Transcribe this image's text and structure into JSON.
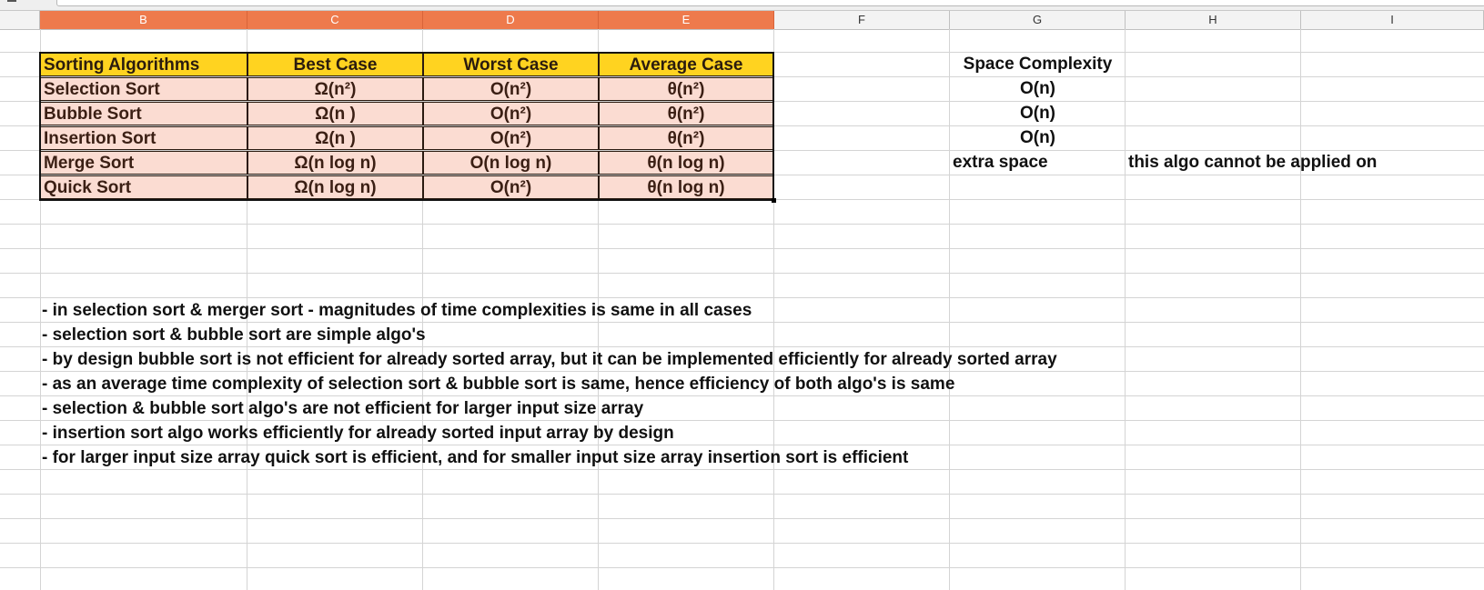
{
  "columns": [
    "B",
    "C",
    "D",
    "E",
    "F",
    "G",
    "H",
    "I"
  ],
  "selected_columns": [
    "B",
    "C",
    "D",
    "E"
  ],
  "table": {
    "headers": [
      "Sorting Algorithms",
      "Best Case",
      "Worst Case",
      "Average Case"
    ],
    "rows": [
      {
        "name": "Selection Sort",
        "best": "Ω(n²)",
        "worst": "O(n²)",
        "avg": "θ(n²)"
      },
      {
        "name": "Bubble Sort",
        "best": "Ω(n )",
        "worst": "O(n²)",
        "avg": "θ(n²)"
      },
      {
        "name": "Insertion Sort",
        "best": "Ω(n )",
        "worst": "O(n²)",
        "avg": "θ(n²)"
      },
      {
        "name": "Merge Sort",
        "best": "Ω(n log n)",
        "worst": "O(n log n)",
        "avg": "θ(n log n)"
      },
      {
        "name": "Quick Sort",
        "best": "Ω(n log n)",
        "worst": "O(n²)",
        "avg": "θ(n log n)"
      }
    ]
  },
  "space": {
    "header": "Space Complexity",
    "values": [
      "O(n)",
      "O(n)",
      "O(n)",
      "extra space"
    ]
  },
  "side_note": "this algo cannot be applied on",
  "notes": [
    "- in selection sort & merger sort - magnitudes of time complexities is same in all cases",
    "- selection sort & bubble sort are simple algo's",
    "- by design bubble sort is not efficient for already sorted array, but it can be implemented efficiently for already sorted array",
    "- as an average time complexity of selection sort & bubble sort is same, hence efficiency of both algo's is same",
    "- selection & bubble sort algo's are not efficient for larger input size array",
    "- insertion sort algo works efficiently for already sorted input array by design",
    "- for larger input size array quick sort is efficient, and for smaller input size array insertion sort is efficient"
  ],
  "colors": {
    "header_fill": "#ffd320",
    "body_fill": "#fbdcd2",
    "selected_column": "#ee7a4c"
  }
}
